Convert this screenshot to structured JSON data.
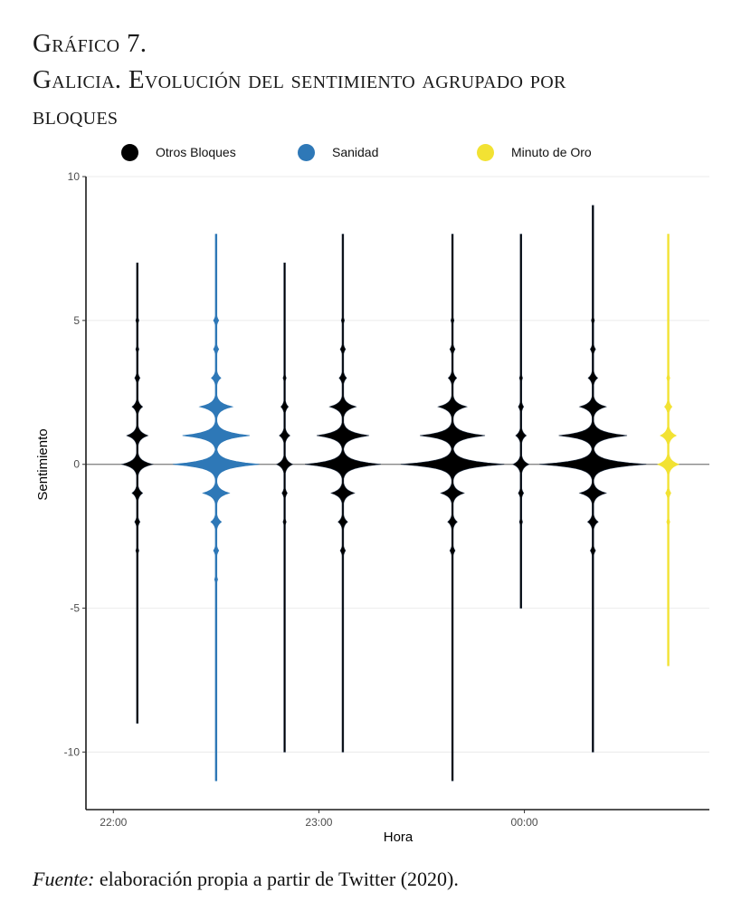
{
  "header": {
    "figure_label": "Gráfico 7.",
    "title_line1": "Galicia. Evolución del sentimiento agrupado por",
    "title_line2": "bloques"
  },
  "source": {
    "label": "Fuente:",
    "text": " elaboración propia a partir de Twitter (2020)."
  },
  "chart_data": {
    "type": "violin",
    "title": "Galicia. Evolución del sentimiento agrupado por bloques",
    "xlabel": "Hora",
    "ylabel": "Sentimiento",
    "xlim_minutes_from_2200": [
      -8,
      174
    ],
    "ylim": [
      -12,
      10
    ],
    "yticks": [
      10,
      5,
      0,
      -5,
      -10
    ],
    "ytick_labels": [
      "10",
      "5",
      "0",
      "-5",
      "-10"
    ],
    "xticks_minutes_from_2200": [
      0,
      60,
      120
    ],
    "xtick_labels": [
      "22:00",
      "23:00",
      "00:00"
    ],
    "grid": "horizontal",
    "reference_line_y": 0,
    "legend_position": "top",
    "legend": [
      {
        "name": "Otros Bloques",
        "color": "#000000"
      },
      {
        "name": "Sanidad",
        "color": "#2e78b7"
      },
      {
        "name": "Minuto de Oro",
        "color": "#f2e233"
      }
    ],
    "density_note": "relative density by sentiment score (1 = widest violin)",
    "violins": [
      {
        "group": "Otros Bloques",
        "time": "22:07",
        "minutes": 7,
        "min": -9,
        "max": 7,
        "density": {
          "-3": 0.03,
          "-2": 0.05,
          "-1": 0.1,
          "0": 0.29,
          "1": 0.2,
          "2": 0.1,
          "3": 0.05,
          "4": 0.03,
          "5": 0.03
        }
      },
      {
        "group": "Sanidad",
        "time": "22:30",
        "minutes": 30,
        "min": -11,
        "max": 8,
        "density": {
          "-4": 0.03,
          "-3": 0.05,
          "-2": 0.1,
          "-1": 0.25,
          "0": 0.81,
          "1": 0.63,
          "2": 0.31,
          "3": 0.09,
          "4": 0.05,
          "5": 0.05
        }
      },
      {
        "group": "Otros Bloques",
        "time": "22:50",
        "minutes": 50,
        "min": -10,
        "max": 7,
        "density": {
          "-2": 0.03,
          "-1": 0.05,
          "0": 0.15,
          "1": 0.1,
          "2": 0.07,
          "3": 0.03
        }
      },
      {
        "group": "Otros Bloques",
        "time": "23:07",
        "minutes": 67,
        "min": -10,
        "max": 8,
        "density": {
          "-3": 0.05,
          "-2": 0.09,
          "-1": 0.22,
          "0": 0.71,
          "1": 0.49,
          "2": 0.25,
          "3": 0.07,
          "4": 0.05,
          "5": 0.03
        }
      },
      {
        "group": "Otros Bloques",
        "time": "23:39",
        "minutes": 99,
        "min": -11,
        "max": 8,
        "density": {
          "-3": 0.05,
          "-2": 0.09,
          "-1": 0.22,
          "0": 0.97,
          "1": 0.61,
          "2": 0.27,
          "3": 0.08,
          "4": 0.05,
          "5": 0.03
        }
      },
      {
        "group": "Otros Bloques",
        "time": "23:59",
        "minutes": 119,
        "min": -5,
        "max": 8,
        "density": {
          "-2": 0.03,
          "-1": 0.05,
          "0": 0.15,
          "1": 0.1,
          "2": 0.05,
          "3": 0.03
        }
      },
      {
        "group": "Otros Bloques",
        "time": "00:20",
        "minutes": 140,
        "min": -10,
        "max": 9,
        "density": {
          "-3": 0.05,
          "-2": 0.1,
          "-1": 0.25,
          "0": 1.0,
          "1": 0.64,
          "2": 0.25,
          "3": 0.09,
          "4": 0.05,
          "5": 0.03
        }
      },
      {
        "group": "Minuto de Oro",
        "time": "00:42",
        "minutes": 162,
        "min": -7,
        "max": 8,
        "density": {
          "-2": 0.03,
          "-1": 0.05,
          "0": 0.2,
          "1": 0.15,
          "2": 0.07,
          "3": 0.03
        }
      }
    ]
  }
}
